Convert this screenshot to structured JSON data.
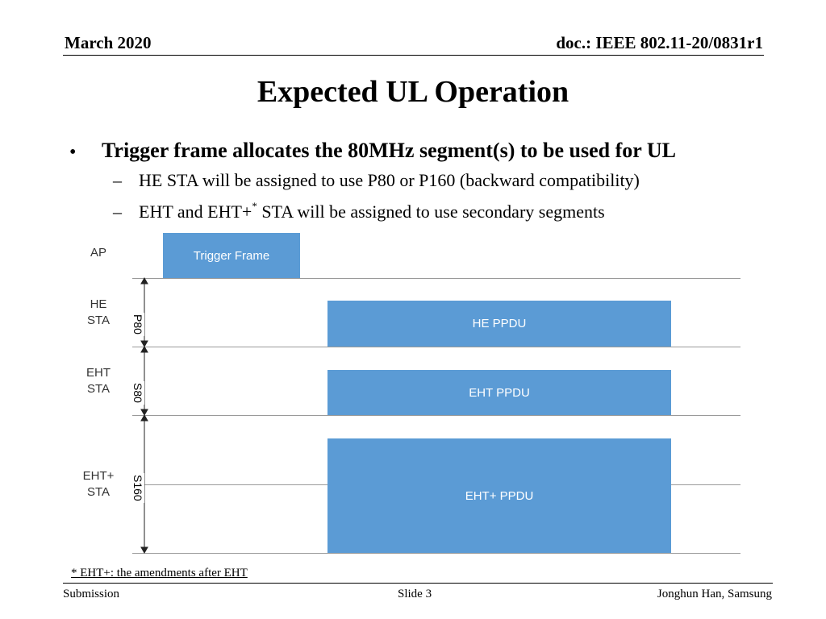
{
  "header": {
    "date": "March 2020",
    "doc_id": "doc.: IEEE 802.11-20/0831r1"
  },
  "slide": {
    "title": "Expected UL Operation",
    "bullet": {
      "marker": "•",
      "text": "Trigger frame allocates the 80MHz segment(s) to be used for UL",
      "subitems": [
        {
          "dash": "–",
          "text": "HE STA will be assigned to use P80 or P160 (backward compatibility)"
        },
        {
          "dash": "–",
          "text_before": "EHT and EHT+",
          "sup": "*",
          "text_after": " STA will be assigned to use secondary segments"
        }
      ]
    }
  },
  "diagram": {
    "rows": {
      "ap": "AP",
      "he_line1": "HE",
      "he_line2": "STA",
      "eht_line1": "EHT",
      "eht_line2": "STA",
      "ehtp_line1": "EHT+",
      "ehtp_line2": "STA"
    },
    "segments": {
      "he": "P80",
      "eht": "S80",
      "ehtp": "S160"
    },
    "blocks": {
      "trigger": "Trigger Frame",
      "he_ppdu": "HE PPDU",
      "eht_ppdu": "EHT PPDU",
      "ehtp_ppdu": "EHT+ PPDU"
    },
    "colors": {
      "block_fill": "#5b9bd5",
      "block_text": "#ffffff",
      "grid_line": "#9a9a9a"
    }
  },
  "footnote": "* EHT+: the amendments after EHT",
  "footer": {
    "left": "Submission",
    "center": "Slide 3",
    "right": "Jonghun Han, Samsung"
  }
}
